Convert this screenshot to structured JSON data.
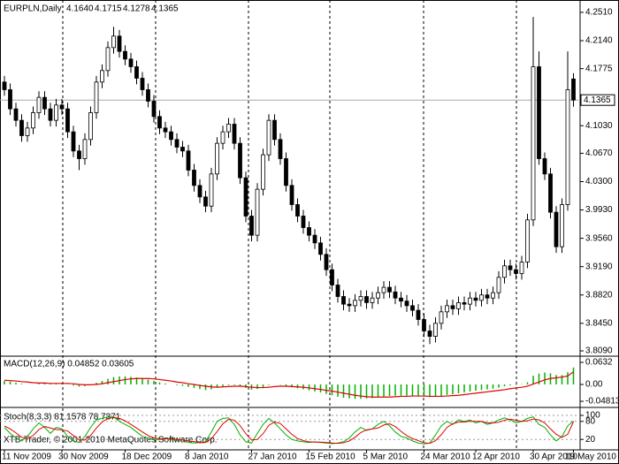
{
  "chart_data": [
    {
      "type": "candlestick",
      "title": "EURPLN,Daily",
      "header_values": [
        "4.1640",
        "4.1715",
        "4.1278",
        "4.1365"
      ],
      "categories": [
        "11 Nov 2009",
        null,
        null,
        null,
        null,
        null,
        null,
        null,
        null,
        null,
        "30 Nov 2009",
        null,
        null,
        null,
        null,
        null,
        null,
        null,
        null,
        null,
        null,
        "18 Dec 2009",
        null,
        null,
        null,
        null,
        null,
        null,
        null,
        null,
        null,
        null,
        "8 Jan 2010",
        null,
        null,
        null,
        null,
        null,
        null,
        null,
        null,
        null,
        null,
        "27 Jan 2010",
        null,
        null,
        null,
        null,
        null,
        null,
        null,
        null,
        null,
        "15 Feb 2010",
        null,
        null,
        null,
        null,
        null,
        null,
        null,
        null,
        null,
        "5 Mar 2010",
        null,
        null,
        null,
        null,
        null,
        null,
        null,
        null,
        null,
        "24 Mar 2010",
        null,
        null,
        null,
        null,
        null,
        null,
        null,
        null,
        "12 Apr 2010",
        null,
        null,
        null,
        null,
        null,
        null,
        null,
        null,
        null,
        "30 Apr 2010",
        null,
        null,
        null,
        null,
        null,
        null,
        "19 May 2010"
      ],
      "open": [
        4.16,
        4.15,
        4.125,
        4.11,
        4.09,
        4.1,
        4.12,
        4.14,
        4.125,
        4.11,
        4.13,
        4.125,
        4.095,
        4.07,
        4.06,
        4.085,
        4.12,
        4.16,
        4.175,
        4.205,
        4.22,
        4.2,
        4.19,
        4.18,
        4.165,
        4.15,
        4.135,
        4.115,
        4.1,
        4.095,
        4.085,
        4.075,
        4.07,
        4.045,
        4.025,
        4.01,
        3.998,
        4.04,
        4.08,
        4.095,
        4.105,
        4.08,
        4.035,
        3.985,
        3.96,
        4.02,
        4.065,
        4.11,
        4.085,
        4.06,
        4.025,
        4.0,
        3.985,
        3.97,
        3.96,
        3.95,
        3.935,
        3.915,
        3.895,
        3.88,
        3.87,
        3.868,
        3.875,
        3.88,
        3.872,
        3.878,
        3.885,
        3.892,
        3.886,
        3.878,
        3.874,
        3.868,
        3.862,
        3.85,
        3.835,
        3.828,
        3.845,
        3.86,
        3.868,
        3.864,
        3.872,
        3.87,
        3.878,
        3.875,
        3.882,
        3.878,
        3.885,
        3.905,
        3.92,
        3.915,
        3.91,
        3.925,
        3.98,
        4.18,
        4.06,
        4.04,
        3.99,
        3.945,
        4.0,
        4.164
      ],
      "high": [
        4.168,
        4.158,
        4.133,
        4.118,
        4.108,
        4.128,
        4.148,
        4.148,
        4.133,
        4.138,
        4.138,
        4.133,
        4.103,
        4.078,
        4.093,
        4.128,
        4.168,
        4.183,
        4.213,
        4.232,
        4.228,
        4.208,
        4.198,
        4.188,
        4.173,
        4.158,
        4.143,
        4.123,
        4.108,
        4.103,
        4.093,
        4.083,
        4.078,
        4.053,
        4.033,
        4.018,
        4.048,
        4.088,
        4.103,
        4.113,
        4.113,
        4.088,
        4.043,
        3.993,
        4.028,
        4.073,
        4.118,
        4.118,
        4.093,
        4.068,
        4.033,
        4.008,
        3.993,
        3.978,
        3.968,
        3.958,
        3.943,
        3.923,
        3.903,
        3.888,
        3.878,
        3.883,
        3.888,
        3.888,
        3.886,
        3.893,
        3.9,
        3.9,
        3.894,
        3.886,
        3.882,
        3.876,
        3.87,
        3.858,
        3.843,
        3.853,
        3.868,
        3.876,
        3.876,
        3.88,
        3.88,
        3.886,
        3.886,
        3.89,
        3.89,
        3.893,
        3.913,
        3.928,
        3.928,
        3.923,
        3.933,
        3.988,
        4.245,
        4.2,
        4.068,
        4.048,
        3.998,
        4.008,
        4.2,
        4.1715
      ],
      "low": [
        4.142,
        4.117,
        4.102,
        4.082,
        4.082,
        4.092,
        4.112,
        4.117,
        4.102,
        4.102,
        4.117,
        4.087,
        4.062,
        4.045,
        4.052,
        4.077,
        4.112,
        4.152,
        4.167,
        4.197,
        4.192,
        4.182,
        4.172,
        4.157,
        4.142,
        4.127,
        4.107,
        4.092,
        4.087,
        4.077,
        4.067,
        4.062,
        4.037,
        4.017,
        4.002,
        3.99,
        3.99,
        4.032,
        4.072,
        4.087,
        4.072,
        4.027,
        3.977,
        3.952,
        3.952,
        4.012,
        4.057,
        4.077,
        4.052,
        4.017,
        3.992,
        3.977,
        3.962,
        3.952,
        3.942,
        3.927,
        3.907,
        3.887,
        3.872,
        3.862,
        3.86,
        3.86,
        3.867,
        3.864,
        3.864,
        3.87,
        3.877,
        3.878,
        3.87,
        3.866,
        3.86,
        3.854,
        3.842,
        3.827,
        3.818,
        3.82,
        3.837,
        3.852,
        3.856,
        3.856,
        3.862,
        3.862,
        3.867,
        3.867,
        3.87,
        3.87,
        3.877,
        3.897,
        3.907,
        3.902,
        3.902,
        3.917,
        3.972,
        4.052,
        4.032,
        3.982,
        3.937,
        3.937,
        3.992,
        4.1278
      ],
      "close": [
        4.15,
        4.125,
        4.11,
        4.09,
        4.1,
        4.12,
        4.14,
        4.125,
        4.11,
        4.13,
        4.125,
        4.095,
        4.07,
        4.06,
        4.085,
        4.12,
        4.16,
        4.175,
        4.205,
        4.22,
        4.2,
        4.19,
        4.18,
        4.165,
        4.15,
        4.135,
        4.115,
        4.1,
        4.095,
        4.085,
        4.075,
        4.07,
        4.045,
        4.025,
        4.01,
        3.998,
        4.04,
        4.08,
        4.095,
        4.105,
        4.08,
        4.035,
        3.985,
        3.96,
        4.02,
        4.065,
        4.11,
        4.085,
        4.06,
        4.025,
        4.0,
        3.985,
        3.97,
        3.96,
        3.95,
        3.935,
        3.915,
        3.895,
        3.88,
        3.87,
        3.868,
        3.875,
        3.88,
        3.872,
        3.878,
        3.885,
        3.892,
        3.886,
        3.878,
        3.874,
        3.868,
        3.862,
        3.85,
        3.835,
        3.828,
        3.845,
        3.86,
        3.868,
        3.864,
        3.872,
        3.87,
        3.878,
        3.875,
        3.882,
        3.878,
        3.885,
        3.905,
        3.92,
        3.915,
        3.91,
        3.925,
        3.98,
        4.18,
        4.06,
        4.04,
        3.99,
        3.945,
        4.0,
        4.15,
        4.1365
      ],
      "up_color": "#ffffff",
      "down_color": "#000000",
      "last_price": {
        "value": 4.1365,
        "label": "4.1365"
      },
      "ylim": [
        3.8021,
        4.2648
      ],
      "yticks": [
        {
          "value": 4.251,
          "label": "4.2510"
        },
        {
          "value": 4.214,
          "label": "4.2140"
        },
        4.1775,
        {
          "value": 4.103,
          "label": "4.1030"
        },
        {
          "value": 4.067,
          "label": "4.0670"
        },
        {
          "value": 4.03,
          "label": "4.0300"
        },
        {
          "value": 3.993,
          "label": "3.9930"
        },
        {
          "value": 3.956,
          "label": "3.9560"
        },
        {
          "value": 3.919,
          "label": "3.9190"
        },
        {
          "value": 3.882,
          "label": "3.8820"
        },
        {
          "value": 3.845,
          "label": "3.8450"
        },
        {
          "value": 3.809,
          "label": "3.8090"
        }
      ]
    },
    {
      "type": "bar",
      "title": "MACD(12,26,9) 0.04852 0.03605",
      "color": "#00b000",
      "line_color": "#e00000",
      "values": [
        0.01,
        0.008,
        0.005,
        0.002,
        0.0,
        0.0,
        0.002,
        0.003,
        0.002,
        0.003,
        0.003,
        0.001,
        -0.003,
        -0.006,
        -0.005,
        -0.001,
        0.005,
        0.01,
        0.016,
        0.021,
        0.023,
        0.023,
        0.022,
        0.02,
        0.017,
        0.014,
        0.01,
        0.006,
        0.003,
        0.0,
        -0.002,
        -0.004,
        -0.007,
        -0.01,
        -0.013,
        -0.016,
        -0.014,
        -0.009,
        -0.005,
        -0.002,
        -0.002,
        -0.005,
        -0.01,
        -0.015,
        -0.013,
        -0.008,
        -0.002,
        0.0,
        -0.001,
        -0.004,
        -0.008,
        -0.011,
        -0.014,
        -0.017,
        -0.02,
        -0.023,
        -0.027,
        -0.031,
        -0.035,
        -0.038,
        -0.04,
        -0.041,
        -0.041,
        -0.04,
        -0.039,
        -0.037,
        -0.035,
        -0.033,
        -0.032,
        -0.032,
        -0.032,
        -0.032,
        -0.033,
        -0.035,
        -0.036,
        -0.035,
        -0.033,
        -0.03,
        -0.028,
        -0.025,
        -0.023,
        -0.02,
        -0.018,
        -0.016,
        -0.014,
        -0.012,
        -0.009,
        -0.005,
        -0.003,
        -0.001,
        0.001,
        0.006,
        0.025,
        0.031,
        0.034,
        0.032,
        0.027,
        0.027,
        0.035,
        0.04852
      ],
      "line_values": [
        0.012,
        0.011,
        0.01,
        0.008,
        0.007,
        0.005,
        0.004,
        0.004,
        0.003,
        0.003,
        0.003,
        0.003,
        0.002,
        0.0,
        -0.001,
        -0.001,
        0.0,
        0.002,
        0.005,
        0.008,
        0.011,
        0.014,
        0.016,
        0.017,
        0.017,
        0.017,
        0.016,
        0.014,
        0.012,
        0.01,
        0.007,
        0.005,
        0.002,
        0.0,
        -0.003,
        -0.005,
        -0.007,
        -0.008,
        -0.007,
        -0.006,
        -0.005,
        -0.005,
        -0.006,
        -0.008,
        -0.009,
        -0.009,
        -0.008,
        -0.006,
        -0.005,
        -0.005,
        -0.006,
        -0.007,
        -0.008,
        -0.01,
        -0.012,
        -0.014,
        -0.017,
        -0.019,
        -0.022,
        -0.025,
        -0.028,
        -0.031,
        -0.033,
        -0.035,
        -0.036,
        -0.036,
        -0.036,
        -0.036,
        -0.035,
        -0.034,
        -0.034,
        -0.033,
        -0.033,
        -0.033,
        -0.034,
        -0.034,
        -0.034,
        -0.033,
        -0.032,
        -0.031,
        -0.029,
        -0.027,
        -0.025,
        -0.023,
        -0.021,
        -0.019,
        -0.017,
        -0.015,
        -0.012,
        -0.01,
        -0.008,
        -0.005,
        0.001,
        0.007,
        0.013,
        0.017,
        0.019,
        0.021,
        0.024,
        0.03605
      ],
      "ylim": [
        -0.0632,
        0.0758
      ],
      "yticks": [
        0.0632,
        {
          "value": 0,
          "label": "0.00"
        },
        -0.04813
      ]
    },
    {
      "type": "line",
      "title": "Stoch(8,3,3) 81.1578 78.7371",
      "series": [
        {
          "color": "#00b000",
          "values": [
            60,
            40,
            25,
            15,
            30,
            55,
            75,
            60,
            40,
            60,
            55,
            30,
            15,
            10,
            30,
            60,
            85,
            90,
            95,
            95,
            80,
            70,
            60,
            45,
            30,
            25,
            20,
            20,
            25,
            20,
            15,
            20,
            10,
            8,
            10,
            12,
            45,
            80,
            90,
            92,
            70,
            35,
            12,
            8,
            40,
            70,
            90,
            75,
            55,
            35,
            20,
            15,
            12,
            10,
            12,
            10,
            8,
            6,
            8,
            12,
            25,
            45,
            60,
            50,
            55,
            70,
            80,
            65,
            45,
            30,
            25,
            15,
            8,
            5,
            8,
            35,
            65,
            80,
            70,
            85,
            80,
            85,
            75,
            80,
            70,
            75,
            85,
            92,
            85,
            75,
            80,
            90,
            95,
            70,
            60,
            35,
            15,
            30,
            65,
            81.1578
          ]
        },
        {
          "color": "#e00000",
          "values": [
            65,
            55,
            42,
            27,
            23,
            33,
            53,
            63,
            58,
            53,
            52,
            48,
            33,
            18,
            18,
            33,
            58,
            78,
            90,
            93,
            90,
            82,
            70,
            58,
            45,
            33,
            25,
            22,
            22,
            22,
            20,
            18,
            15,
            13,
            9,
            10,
            22,
            46,
            72,
            87,
            84,
            66,
            39,
            18,
            20,
            39,
            67,
            78,
            73,
            55,
            37,
            23,
            16,
            12,
            11,
            11,
            10,
            8,
            7,
            9,
            15,
            27,
            43,
            52,
            55,
            58,
            68,
            72,
            63,
            47,
            33,
            23,
            16,
            9,
            7,
            16,
            36,
            60,
            72,
            78,
            78,
            80,
            80,
            80,
            75,
            75,
            77,
            84,
            87,
            84,
            80,
            82,
            88,
            85,
            75,
            55,
            37,
            27,
            37,
            78.7371
          ]
        }
      ],
      "ylim": [
        0,
        100
      ],
      "yticks": [
        100,
        80,
        20
      ]
    }
  ],
  "copyright": "XTB-Trader, © 2001-2010 MetaQuotes Software Corp."
}
